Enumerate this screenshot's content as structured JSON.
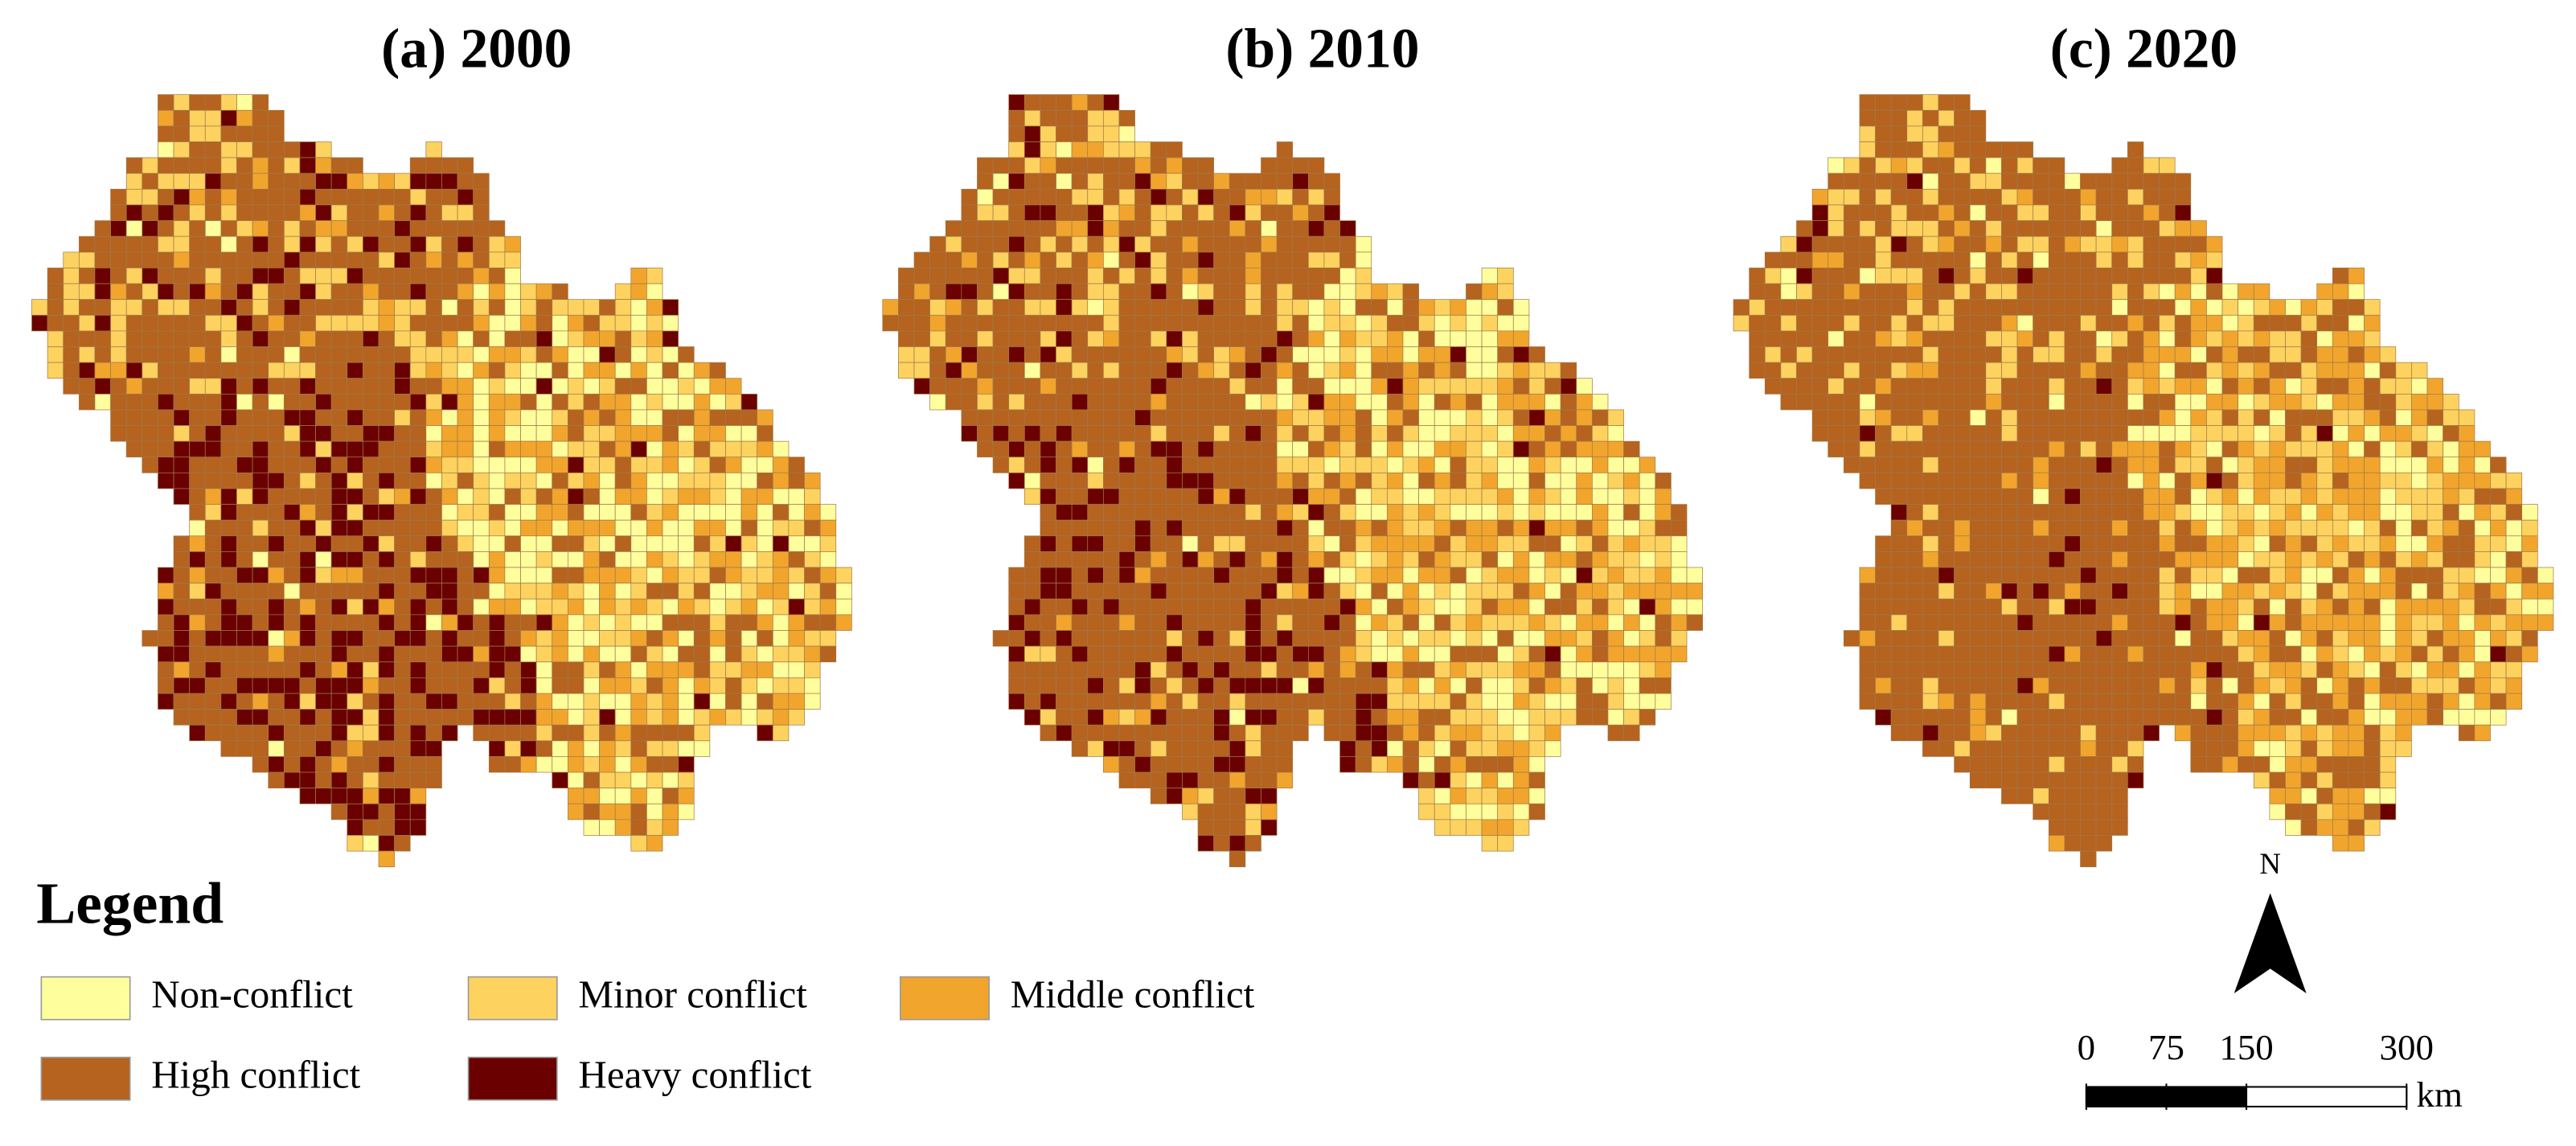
{
  "panels": [
    {
      "title": "(a) 2000"
    },
    {
      "title": "(b) 2010"
    },
    {
      "title": "(c) 2020"
    }
  ],
  "legend": {
    "title": "Legend",
    "items": [
      {
        "label": "Non-conflict",
        "color": "#fefe9c"
      },
      {
        "label": "Minor conflict",
        "color": "#fdd25e"
      },
      {
        "label": "Middle conflict",
        "color": "#f2a52c"
      },
      {
        "label": "High conflict",
        "color": "#b5631f"
      },
      {
        "label": "Heavy conflict",
        "color": "#6a0000"
      }
    ]
  },
  "north_arrow": {
    "label": "N"
  },
  "scale_bar": {
    "ticks": [
      0,
      75,
      150,
      300
    ],
    "unit": "km"
  }
}
